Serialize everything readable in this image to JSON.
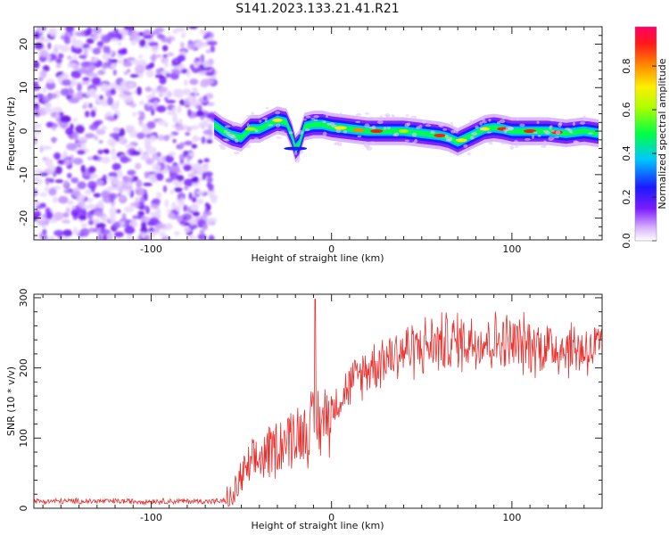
{
  "title": "S141.2023.133.21.41.R21",
  "chart_data": [
    {
      "type": "heatmap",
      "xlabel": "Height of straight line (km)",
      "ylabel": "Frequency (Hz)",
      "xlim": [
        -165,
        150
      ],
      "ylim": [
        -25,
        24
      ],
      "xticks": [
        -100,
        0,
        100
      ],
      "yticks": [
        -20,
        -10,
        0,
        10,
        20
      ],
      "colorbar_label": "Normalized spectral amplitude",
      "colorbar_ticks": [
        0.0,
        0.2,
        0.4,
        0.6,
        0.8
      ],
      "colorbar_range": [
        0,
        0.98
      ],
      "noise_region_x": [
        -165,
        -65
      ],
      "ridge": {
        "x": [
          -65,
          -60,
          -55,
          -50,
          -45,
          -40,
          -35,
          -30,
          -25,
          -22,
          -20,
          -18,
          -15,
          -10,
          -5,
          0,
          10,
          20,
          30,
          40,
          50,
          60,
          65,
          70,
          75,
          80,
          85,
          90,
          95,
          100,
          110,
          120,
          130,
          140,
          148
        ],
        "y": [
          1.5,
          0,
          -1,
          -1.5,
          0.5,
          0.5,
          1.5,
          2.5,
          2,
          -1,
          -4,
          -3,
          1,
          1.5,
          1.5,
          1,
          0.5,
          0,
          0,
          0,
          -0.5,
          -1,
          -1.5,
          -2.5,
          -1.5,
          -0.5,
          0.5,
          0.8,
          0.5,
          0,
          0,
          0,
          -0.5,
          0,
          -0.5
        ]
      }
    },
    {
      "type": "line",
      "xlabel": "Height of straight line (km)",
      "ylabel": "SNR (10 * v/v)",
      "xlim": [
        -165,
        150
      ],
      "ylim": [
        0,
        305
      ],
      "xticks": [
        -100,
        0,
        100
      ],
      "yticks": [
        0,
        100,
        200,
        300
      ],
      "color": "#e8302e",
      "envelope_x": [
        -165,
        -60,
        -55,
        -50,
        -40,
        -30,
        -20,
        -15,
        -10,
        -5,
        0,
        10,
        20,
        30,
        40,
        60,
        80,
        100,
        120,
        150
      ],
      "envelope_y": [
        10,
        10,
        12,
        45,
        70,
        90,
        105,
        110,
        120,
        125,
        140,
        175,
        200,
        215,
        225,
        235,
        240,
        235,
        230,
        225
      ],
      "spike": {
        "x": -9,
        "y": 298
      }
    }
  ]
}
